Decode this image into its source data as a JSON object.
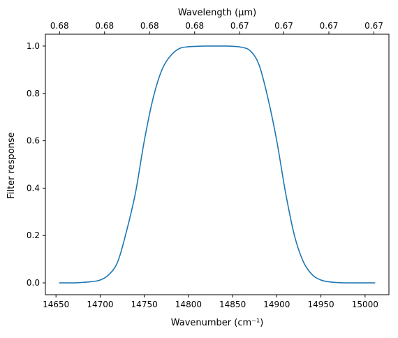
{
  "chart_data": {
    "type": "line",
    "title": "",
    "xlabel": "Wavenumber (cm⁻¹)",
    "ylabel": "Filter response",
    "secondary_xlabel": "Wavelength (μm)",
    "xlim": [
      14638,
      15027
    ],
    "ylim": [
      -0.05,
      1.05
    ],
    "grid": false,
    "legend": "none",
    "x_ticks": [
      14650,
      14700,
      14750,
      14800,
      14850,
      14900,
      14950,
      15000
    ],
    "x_tick_labels": [
      "14650",
      "14700",
      "14750",
      "14800",
      "14850",
      "14900",
      "14950",
      "15000"
    ],
    "y_ticks": [
      0.0,
      0.2,
      0.4,
      0.6,
      0.8,
      1.0
    ],
    "y_tick_labels": [
      "0.0",
      "0.2",
      "0.4",
      "0.6",
      "0.8",
      "1.0"
    ],
    "secondary_x_ticks": [
      14654,
      14705,
      14756,
      14807,
      14858,
      14908,
      14959,
      15010
    ],
    "secondary_x_tick_labels": [
      "0.68",
      "0.68",
      "0.68",
      "0.68",
      "0.67",
      "0.67",
      "0.67",
      "0.67"
    ],
    "line_color": "#1f77b4",
    "series": [
      {
        "x": [
          14654,
          14670,
          14680,
          14690,
          14700,
          14710,
          14720,
          14730,
          14740,
          14750,
          14760,
          14770,
          14780,
          14790,
          14800,
          14810,
          14820,
          14830,
          14840,
          14850,
          14860,
          14870,
          14880,
          14890,
          14900,
          14910,
          14920,
          14930,
          14940,
          14950,
          14960,
          14970,
          14980,
          14990,
          15000,
          15011
        ],
        "y": [
          0.0,
          0.0,
          0.002,
          0.005,
          0.012,
          0.035,
          0.09,
          0.22,
          0.38,
          0.6,
          0.78,
          0.9,
          0.96,
          0.99,
          0.997,
          0.999,
          1.0,
          1.0,
          1.0,
          0.999,
          0.995,
          0.98,
          0.92,
          0.78,
          0.6,
          0.38,
          0.2,
          0.09,
          0.035,
          0.012,
          0.004,
          0.001,
          0.0,
          0.0,
          0.0,
          0.0
        ]
      }
    ]
  }
}
